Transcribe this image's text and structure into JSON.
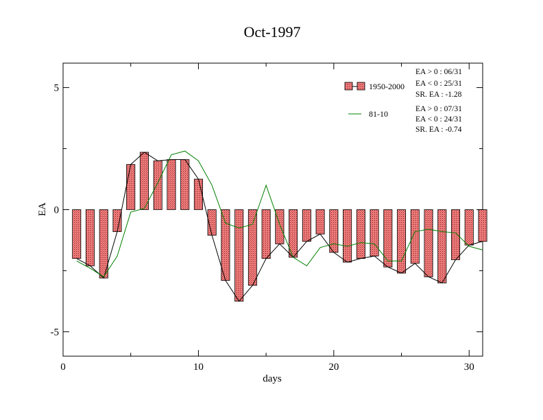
{
  "chart_data": {
    "type": "bar",
    "title": "Oct-1997",
    "xlabel": "days",
    "ylabel": "EA",
    "xlim": [
      0,
      31
    ],
    "ylim": [
      -6,
      6
    ],
    "xticks": [
      0,
      10,
      20,
      30
    ],
    "yticks": [
      5,
      0,
      -5
    ],
    "xtick_labels": [
      "0",
      "10",
      "20",
      "30"
    ],
    "ytick_labels": [
      "5",
      "0",
      "-5"
    ],
    "series": [
      {
        "name": "1950-2000",
        "kind": "bar+line",
        "color": "#f08080",
        "line_color": "#000000",
        "x": [
          1,
          2,
          3,
          4,
          5,
          6,
          7,
          8,
          9,
          10,
          11,
          12,
          13,
          14,
          15,
          16,
          17,
          18,
          19,
          20,
          21,
          22,
          23,
          24,
          25,
          26,
          27,
          28,
          29,
          30,
          31
        ],
        "values": [
          -2.0,
          -2.3,
          -2.8,
          -0.9,
          1.85,
          2.35,
          2.0,
          2.05,
          2.05,
          1.25,
          -1.05,
          -2.9,
          -3.75,
          -3.1,
          -2.0,
          -1.4,
          -1.95,
          -1.3,
          -1.0,
          -1.75,
          -2.15,
          -2.0,
          -1.9,
          -2.35,
          -2.6,
          -2.2,
          -2.75,
          -3.0,
          -2.05,
          -1.45,
          -1.3
        ]
      },
      {
        "name": "81-10",
        "kind": "line",
        "color": "#008000",
        "x": [
          1,
          2,
          3,
          4,
          5,
          6,
          7,
          8,
          9,
          10,
          11,
          12,
          13,
          14,
          15,
          16,
          17,
          18,
          19,
          20,
          21,
          22,
          23,
          24,
          25,
          26,
          27,
          28,
          29,
          30,
          31
        ],
        "values": [
          -2.1,
          -2.4,
          -2.75,
          -1.9,
          -0.1,
          0.05,
          1.1,
          2.25,
          2.4,
          2.0,
          1.0,
          -0.55,
          -0.75,
          -0.6,
          1.0,
          -0.6,
          -1.95,
          -2.3,
          -1.55,
          -1.4,
          -1.5,
          -1.35,
          -1.4,
          -2.1,
          -2.1,
          -0.9,
          -0.8,
          -0.9,
          -0.95,
          -1.5,
          -1.65
        ]
      }
    ],
    "legend_position": "top-right",
    "stats": {
      "a": [
        "EA > 0 : 06/31",
        "EA < 0 : 25/31",
        "SR. EA : -1.28"
      ],
      "b": [
        "EA > 0 : 07/31",
        "EA < 0 : 24/31",
        "SR. EA : -0.74"
      ]
    }
  }
}
